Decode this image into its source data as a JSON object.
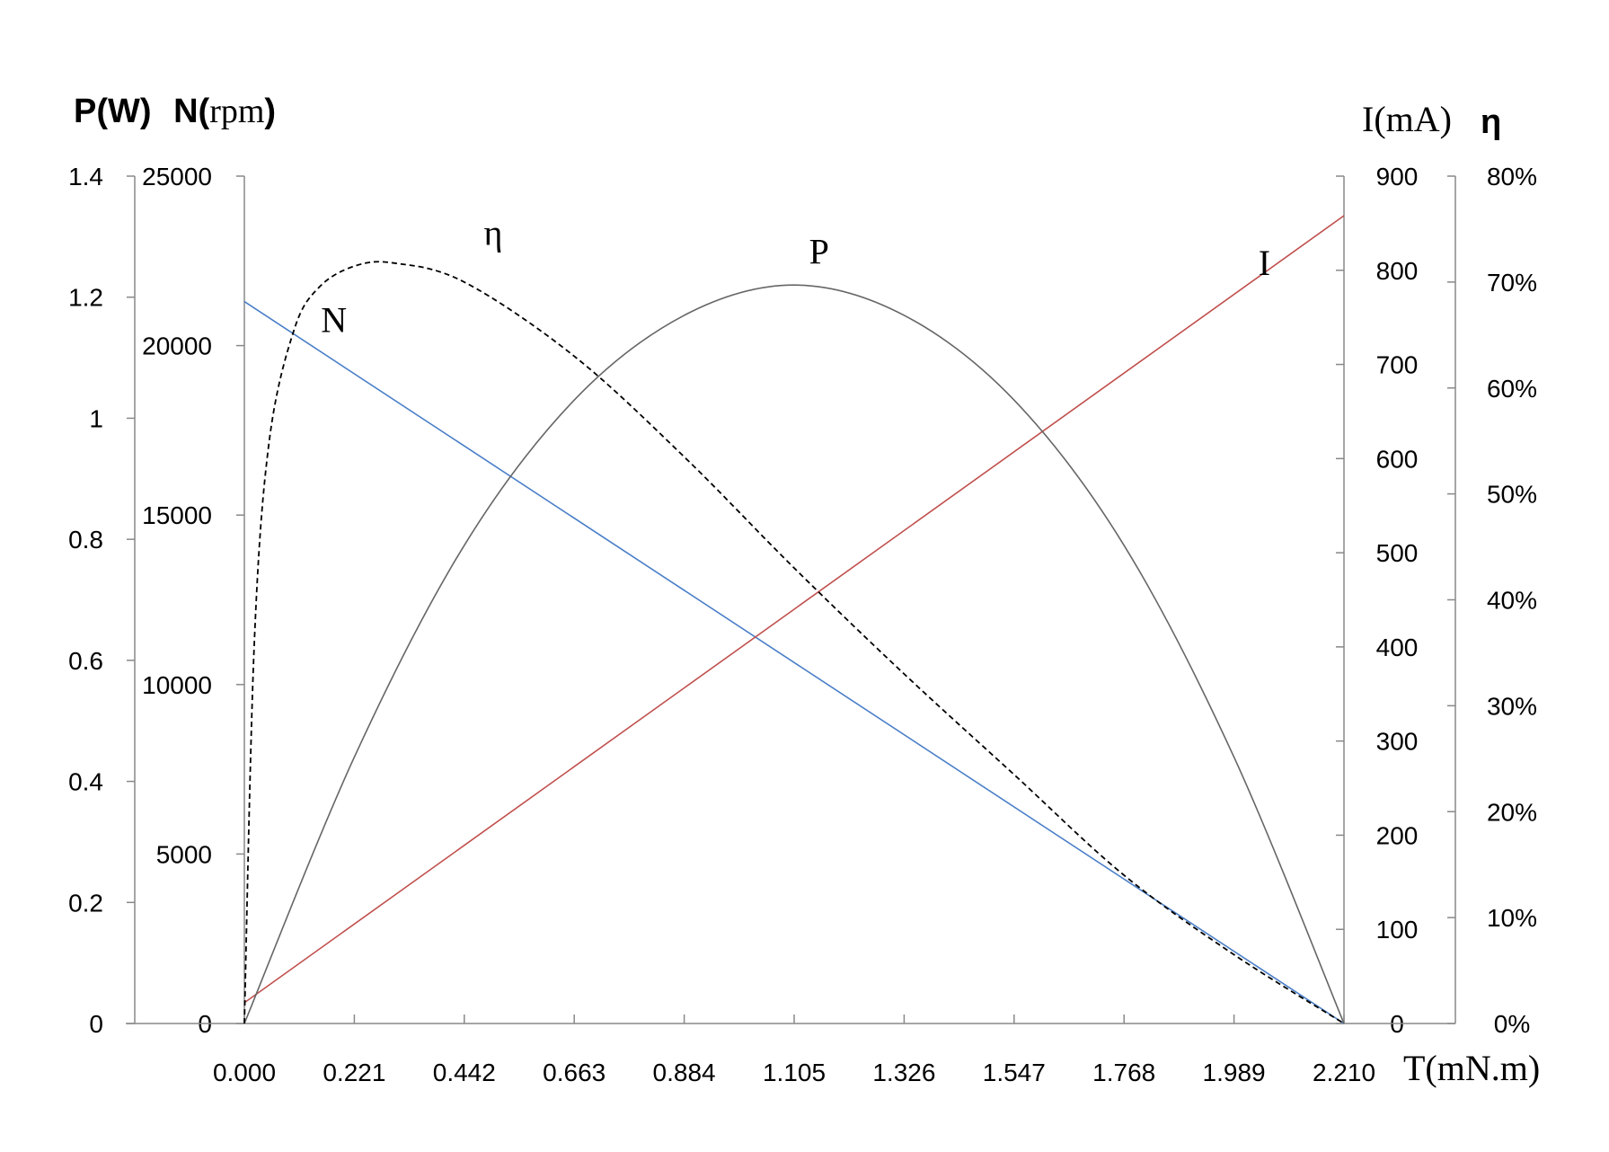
{
  "chart_data": {
    "type": "line",
    "x_axis": {
      "label": "T(mN.m)",
      "range": [
        0,
        2.21
      ],
      "ticks": [
        "0.000",
        "0.221",
        "0.442",
        "0.663",
        "0.884",
        "1.105",
        "1.326",
        "1.547",
        "1.768",
        "1.989",
        "2.210"
      ]
    },
    "y_axes": {
      "P": {
        "label_main": "P(W)",
        "range": [
          0,
          1.4
        ],
        "ticks": [
          "0",
          "0.2",
          "0.4",
          "0.6",
          "0.8",
          "1",
          "1.2",
          "1.4"
        ]
      },
      "N": {
        "label_prefix": "N(",
        "label_unit": "rpm",
        "label_suffix": ")",
        "range": [
          0,
          25000
        ],
        "ticks": [
          "0",
          "5000",
          "10000",
          "15000",
          "20000",
          "25000"
        ]
      },
      "I": {
        "label": "I(mA)",
        "range": [
          0,
          900
        ],
        "ticks": [
          "0",
          "100",
          "200",
          "300",
          "400",
          "500",
          "600",
          "700",
          "800",
          "900"
        ]
      },
      "eta": {
        "label": "η",
        "range": [
          0,
          0.8
        ],
        "ticks": [
          "0%",
          "10%",
          "20%",
          "30%",
          "40%",
          "50%",
          "60%",
          "70%",
          "80%"
        ]
      }
    },
    "series": [
      {
        "name": "N",
        "axis": "N",
        "color": "#4a7fc8",
        "style": "solid",
        "x": [
          0,
          2.21
        ],
        "y": [
          21300,
          0
        ]
      },
      {
        "name": "I",
        "axis": "I",
        "color": "#c0504d",
        "style": "solid",
        "x": [
          0,
          2.21
        ],
        "y": [
          22,
          858
        ]
      },
      {
        "name": "P",
        "axis": "P",
        "color": "#666666",
        "style": "solid",
        "x": [
          0,
          0.221,
          0.442,
          0.663,
          0.884,
          1.105,
          1.326,
          1.547,
          1.768,
          1.989,
          2.21
        ],
        "y": [
          0,
          0.44,
          0.79,
          1.03,
          1.17,
          1.22,
          1.17,
          1.03,
          0.79,
          0.44,
          0
        ]
      },
      {
        "name": "η",
        "axis": "eta",
        "color": "#000000",
        "style": "dashed",
        "x": [
          0,
          0.02,
          0.05,
          0.1,
          0.15,
          0.221,
          0.3,
          0.442,
          0.663,
          0.884,
          1.105,
          1.326,
          1.547,
          1.768,
          1.989,
          2.21
        ],
        "y": [
          0,
          0.36,
          0.55,
          0.655,
          0.695,
          0.715,
          0.718,
          0.7,
          0.63,
          0.535,
          0.43,
          0.33,
          0.235,
          0.14,
          0.065,
          0
        ]
      }
    ],
    "annotations": [
      {
        "text": "η",
        "x": 0.5,
        "axis": "eta",
        "y": 0.735
      },
      {
        "text": "P",
        "x": 1.155,
        "axis": "P",
        "y": 1.255
      },
      {
        "text": "N",
        "x": 0.18,
        "axis": "N",
        "y": 20400
      },
      {
        "text": "I",
        "x": 2.05,
        "axis": "I",
        "y": 795
      }
    ],
    "grid": false,
    "legend": "none"
  }
}
